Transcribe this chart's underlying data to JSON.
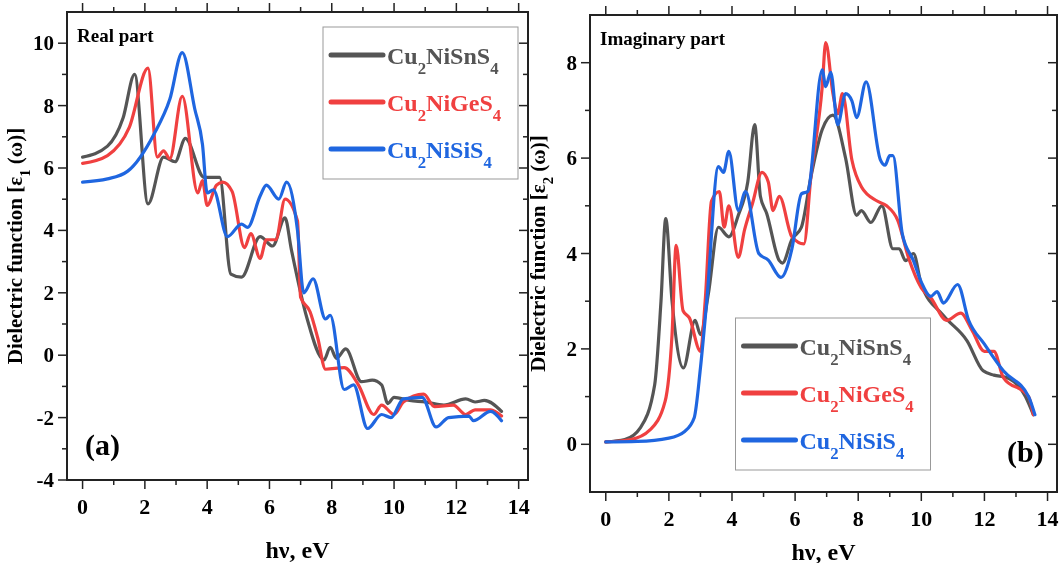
{
  "chart_data": [
    {
      "type": "line",
      "xlabel": "hν, eV",
      "ylabel": "Dielectric function [ε$_{1}$ (ω)]",
      "annotations": [
        "Real part",
        "(a)"
      ],
      "legend": "top right",
      "xlim": [
        -0.5,
        14.3
      ],
      "ylim": [
        -4,
        11
      ],
      "xticks": [
        0,
        {
          "value": 1,
          "label": null
        },
        2,
        {
          "value": 3,
          "label": null
        },
        4,
        {
          "value": 5,
          "label": null
        },
        6,
        {
          "value": 7,
          "label": null
        },
        8,
        {
          "value": 9,
          "label": null
        },
        10,
        {
          "value": 11,
          "label": null
        },
        12,
        {
          "value": 13,
          "label": null
        },
        14
      ],
      "yticks": [
        -4,
        {
          "value": -3,
          "label": null
        },
        -2,
        {
          "value": -1,
          "label": null
        },
        0,
        {
          "value": 1,
          "label": null
        },
        2,
        {
          "value": 3,
          "label": null
        },
        4,
        {
          "value": 5,
          "label": null
        },
        6,
        {
          "value": 7,
          "label": null
        },
        8,
        {
          "value": 9,
          "label": null
        },
        10
      ],
      "series": [
        {
          "name": "Cu$_{2}$NiSnS$_{4}$",
          "color": "#555555",
          "x": [
            0,
            0.8,
            1.3,
            1.67,
            2.1,
            2.6,
            2.97,
            3.3,
            3.9,
            4.4,
            4.76,
            5.1,
            5.7,
            6.1,
            6.5,
            6.7,
            7.2,
            7.75,
            7.95,
            8.15,
            8.45,
            8.95,
            9.3,
            9.6,
            9.8,
            10.0,
            10.5,
            11.0,
            11.6,
            12.3,
            12.6,
            12.9,
            13.45
          ],
          "values": [
            6.35,
            6.7,
            7.6,
            9.0,
            4.85,
            6.35,
            6.2,
            6.95,
            5.7,
            5.7,
            2.6,
            2.5,
            3.8,
            3.5,
            4.4,
            3.4,
            1.2,
            -0.15,
            0.25,
            -0.1,
            0.2,
            -0.85,
            -0.8,
            -0.95,
            -1.55,
            -1.35,
            -1.45,
            -1.5,
            -1.6,
            -1.4,
            -1.5,
            -1.45,
            -1.8
          ]
        },
        {
          "name": "Cu$_{2}$NiGeS$_{4}$",
          "color": "#f04040",
          "x": [
            0,
            0.8,
            1.5,
            2.1,
            2.4,
            2.6,
            2.8,
            3.2,
            3.7,
            3.85,
            4.0,
            4.3,
            4.5,
            4.8,
            5.2,
            5.4,
            5.7,
            5.9,
            6.2,
            6.5,
            6.9,
            7.0,
            7.3,
            7.55,
            7.8,
            8.4,
            8.85,
            9.35,
            9.6,
            10.0,
            10.3,
            10.95,
            11.3,
            11.9,
            12.3,
            12.6,
            13.1,
            13.45
          ],
          "values": [
            6.15,
            6.4,
            7.3,
            9.2,
            6.35,
            6.55,
            6.3,
            8.3,
            5.2,
            5.6,
            4.8,
            5.45,
            5.55,
            5.25,
            3.45,
            3.9,
            3.1,
            3.7,
            3.7,
            5.0,
            4.3,
            1.86,
            1.4,
            0.55,
            -0.45,
            -0.4,
            -0.94,
            -1.9,
            -1.6,
            -1.9,
            -1.5,
            -1.25,
            -1.65,
            -1.6,
            -1.9,
            -1.75,
            -1.75,
            -1.95
          ]
        },
        {
          "name": "Cu$_{2}$NiSiS$_{4}$",
          "color": "#1f66e0",
          "x": [
            0,
            0.8,
            1.45,
            2.3,
            2.8,
            3.2,
            3.6,
            3.85,
            4.0,
            4.2,
            4.65,
            5.1,
            5.3,
            5.7,
            5.9,
            6.3,
            6.55,
            6.9,
            7.1,
            7.4,
            7.8,
            7.95,
            8.4,
            8.7,
            9.15,
            9.6,
            9.9,
            10.3,
            10.9,
            11.35,
            11.75,
            12.4,
            12.55,
            13.1,
            13.45
          ],
          "values": [
            5.55,
            5.65,
            5.9,
            7.1,
            8.2,
            9.7,
            7.9,
            6.75,
            5.2,
            5.3,
            3.8,
            4.2,
            4.1,
            5.1,
            5.45,
            5.0,
            5.55,
            4.0,
            2.0,
            2.45,
            1.16,
            1.28,
            -1.1,
            -0.95,
            -2.35,
            -1.9,
            -2.0,
            -1.4,
            -1.35,
            -2.3,
            -2.0,
            -1.95,
            -2.1,
            -1.8,
            -2.1
          ]
        }
      ]
    },
    {
      "type": "line",
      "xlabel": "hν, eV",
      "ylabel": "Dielectric function [ε$_{2}$ (ω)]",
      "annotations": [
        "Imaginary part",
        "(b)"
      ],
      "legend": "bottom",
      "xlim": [
        -0.5,
        14.3
      ],
      "ylim": [
        -1,
        9
      ],
      "xticks": [
        0,
        {
          "value": 1,
          "label": null
        },
        2,
        {
          "value": 3,
          "label": null
        },
        4,
        {
          "value": 5,
          "label": null
        },
        6,
        {
          "value": 7,
          "label": null
        },
        8,
        {
          "value": 9,
          "label": null
        },
        10,
        {
          "value": 11,
          "label": null
        },
        12,
        {
          "value": 13,
          "label": null
        },
        14
      ],
      "yticks": [
        0,
        {
          "value": 1,
          "label": null
        },
        2,
        {
          "value": 3,
          "label": null
        },
        4,
        {
          "value": 5,
          "label": null
        },
        6,
        {
          "value": 7,
          "label": null
        },
        8
      ],
      "series": [
        {
          "name": "Cu$_{2}$NiSnS$_{4}$",
          "color": "#555555",
          "x": [
            0,
            0.6,
            1.1,
            1.55,
            1.75,
            1.9,
            2.1,
            2.46,
            2.83,
            3.0,
            3.25,
            3.57,
            3.9,
            4.2,
            4.5,
            4.72,
            4.9,
            5.1,
            5.5,
            5.6,
            5.9,
            6.2,
            6.5,
            6.86,
            7.2,
            7.6,
            7.95,
            8.1,
            8.4,
            8.75,
            9.1,
            9.3,
            9.5,
            9.75,
            10.0,
            10.7,
            11.45,
            11.96,
            12.3,
            12.7,
            13.3,
            13.55
          ],
          "values": [
            0.05,
            0.1,
            0.35,
            1.25,
            3.0,
            4.73,
            3.0,
            1.6,
            2.6,
            2.3,
            3.15,
            4.55,
            4.35,
            4.8,
            5.5,
            6.7,
            5.2,
            4.84,
            3.85,
            3.8,
            4.3,
            4.55,
            5.6,
            6.6,
            6.9,
            6.0,
            4.8,
            4.9,
            4.65,
            5.0,
            4.1,
            4.1,
            3.85,
            4.0,
            3.35,
            2.7,
            2.17,
            1.54,
            1.45,
            1.4,
            1.0,
            0.62
          ]
        },
        {
          "name": "Cu$_{2}$NiGeS$_{4}$",
          "color": "#f04040",
          "x": [
            0,
            0.8,
            1.4,
            1.88,
            2.1,
            2.23,
            2.45,
            2.65,
            3.0,
            3.15,
            3.35,
            3.6,
            3.75,
            3.9,
            4.2,
            4.4,
            4.65,
            4.95,
            5.15,
            5.3,
            5.5,
            5.9,
            6.28,
            6.5,
            6.86,
            6.97,
            7.2,
            7.35,
            7.5,
            7.8,
            8.1,
            8.6,
            8.9,
            9.25,
            9.6,
            10.0,
            10.3,
            10.8,
            11.25,
            11.6,
            12.0,
            12.3,
            12.6,
            13.4,
            13.55
          ],
          "values": [
            0.05,
            0.1,
            0.3,
            0.9,
            2.3,
            4.17,
            2.8,
            2.65,
            1.95,
            3.0,
            5.1,
            5.3,
            4.55,
            5.0,
            3.92,
            4.5,
            5.05,
            5.7,
            5.5,
            4.9,
            5.2,
            4.35,
            4.2,
            5.6,
            7.5,
            8.42,
            7.35,
            6.93,
            7.35,
            5.96,
            5.4,
            5.1,
            5.0,
            4.7,
            3.9,
            3.28,
            3.07,
            2.6,
            2.75,
            2.4,
            1.95,
            1.95,
            1.4,
            1.0,
            0.62
          ]
        },
        {
          "name": "Cu$_{2}$NiSiS$_{4}$",
          "color": "#1f66e0",
          "x": [
            0,
            1.0,
            2.0,
            2.5,
            2.8,
            3.0,
            3.2,
            3.57,
            3.73,
            3.9,
            4.2,
            4.43,
            4.85,
            5.15,
            5.55,
            5.9,
            6.2,
            6.4,
            6.86,
            6.97,
            7.13,
            7.35,
            7.6,
            7.8,
            7.95,
            8.25,
            8.7,
            8.85,
            9.0,
            9.1,
            9.4,
            9.75,
            10.0,
            10.3,
            10.5,
            10.7,
            11.15,
            11.5,
            12.0,
            12.6,
            13.4,
            13.6
          ],
          "values": [
            0.05,
            0.06,
            0.13,
            0.27,
            0.55,
            1.6,
            3.0,
            5.82,
            5.7,
            6.14,
            4.9,
            5.3,
            4.0,
            3.86,
            3.5,
            4.1,
            5.25,
            5.3,
            7.85,
            7.5,
            7.8,
            6.7,
            7.35,
            7.2,
            6.85,
            7.6,
            5.97,
            5.85,
            6.05,
            6.05,
            4.4,
            3.85,
            3.4,
            3.1,
            3.2,
            2.96,
            3.35,
            2.6,
            2.1,
            1.54,
            1.0,
            0.62
          ]
        }
      ]
    }
  ]
}
